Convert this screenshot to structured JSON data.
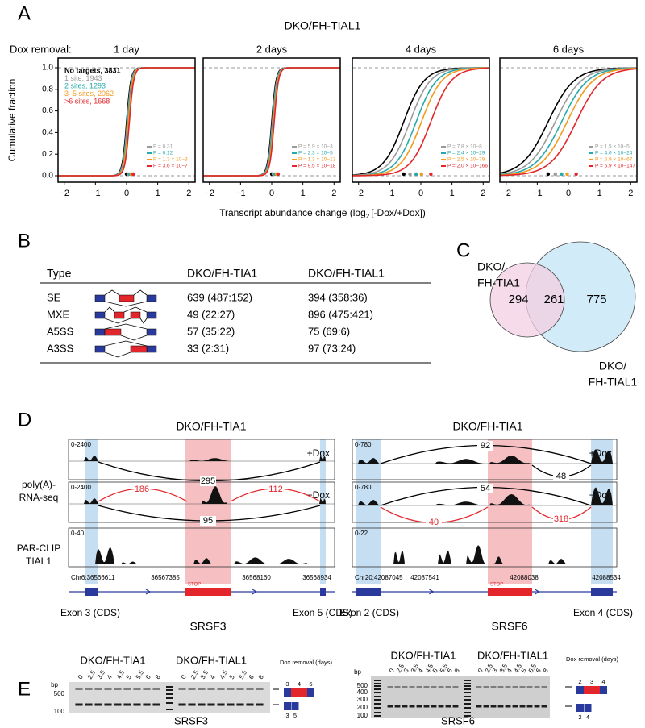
{
  "panel_a": {
    "label": "A",
    "title": "DKO/FH-TIAL1",
    "dox_label": "Dox removal:",
    "y_label": "Cumulative fraction",
    "x_label": [
      "Transcript abundance change (log",
      "2",
      "[-Dox/+Dox])"
    ],
    "y_ticks": [
      "0.0",
      "0.2",
      "0.4",
      "0.6",
      "0.8",
      "1.0"
    ],
    "x_ticks": [
      "−2",
      "−1",
      "0",
      "1",
      "2"
    ],
    "legend": [
      "No targets, 3831",
      "1 site, 1943",
      "2 sites, 1293",
      "3–5 sites, 2062",
      ">6 sites, 1668"
    ],
    "plots": [
      {
        "title": "1 day",
        "p_values": [
          "P = 0.31",
          "P = 0.12",
          "P = 1.3 × 10−3",
          "P = 3.6 × 10−7"
        ]
      },
      {
        "title": "2 days",
        "p_values": [
          "P = 5.9 × 10−3",
          "P = 2.3 × 10−5",
          "P = 1.3 × 10−13",
          "P = 9.5 × 10−18"
        ]
      },
      {
        "title": "4 days",
        "p_values": [
          "P = 7.8 × 10−8",
          "P = 2.4 × 10−29",
          "P = 2.5 × 10−79",
          "P = 2.0 × 10−166"
        ]
      },
      {
        "title": "6 days",
        "p_values": [
          "P = 1.5 × 10−5",
          "P = 4.0 × 10−24",
          "P = 5.9 × 10−67",
          "P = 5.9 × 10−147"
        ]
      }
    ]
  },
  "panel_b": {
    "label": "B",
    "header": [
      "Type",
      "DKO/FH-TIA1",
      "DKO/FH-TIAL1"
    ],
    "rows": [
      [
        "SE",
        "639 (487:152)",
        "394 (358:36)"
      ],
      [
        "MXE",
        "49 (22:27)",
        "896 (475:421)"
      ],
      [
        "A5SS",
        "57 (35:22)",
        "75 (69:6)"
      ],
      [
        "A3SS",
        "33 (2:31)",
        "97 (73:24)"
      ]
    ]
  },
  "panel_c": {
    "label": "C",
    "left_label": [
      "DKO/",
      "FH-TIA1"
    ],
    "right_label": [
      "DKO/",
      "FH-TIAL1"
    ],
    "counts": [
      "294",
      "261",
      "775"
    ]
  },
  "panel_d": {
    "label": "D",
    "track_labels": [
      [
        "poly(A)-",
        "RNA-seq"
      ],
      [
        "PAR-CLIP",
        "TIAL1"
      ]
    ],
    "genes": [
      {
        "title": "DKO/FH-TIA1",
        "scales": [
          "0-2400",
          "0-2400",
          "0-40"
        ],
        "plus": "+Dox",
        "minus": "−Dox",
        "junctions_plus": [
          "295"
        ],
        "junctions_minus": [
          "186",
          "112",
          "95"
        ],
        "coords": [
          "Chr6:36566611",
          "36567385",
          "36568160",
          "36568934"
        ],
        "stop": "STOP",
        "exons": [
          "Exon 3 (CDS)",
          "Exon 5 (CDS)"
        ],
        "gene": "SRSF3"
      },
      {
        "title": "DKO/FH-TIA1",
        "scales": [
          "0-780",
          "0-780",
          "0-22"
        ],
        "plus": "+Dox",
        "minus": "−Dox",
        "junctions_plus": [
          "92",
          "48"
        ],
        "junctions_minus": [
          "54",
          "40",
          "318"
        ],
        "coords": [
          "Chr20:42087045",
          "42087541",
          "42088038",
          "42088534"
        ],
        "stop": "STOP",
        "exons": [
          "Exon 2 (CDS)",
          "Exon 4 (CDS)"
        ],
        "gene": "SRSF6"
      }
    ]
  },
  "panel_e": {
    "label": "E",
    "gels": [
      {
        "groups": [
          "DKO/FH-TIA1",
          "DKO/FH-TIAL1"
        ],
        "bp": "bp",
        "sizes": [
          "500",
          "100"
        ],
        "lanes": [
          "0",
          "2.5",
          "3.5",
          "4",
          "4.5",
          "5",
          "5.5",
          "6",
          "8"
        ],
        "dox": "Dox removal (days)",
        "long_exons": [
          "3",
          "4",
          "5"
        ],
        "short_exons": [
          "3",
          "5"
        ],
        "gene": "SRSF3"
      },
      {
        "groups": [
          "DKO/FH-TIA1",
          "DKO/FH-TIAL1"
        ],
        "bp": "bp",
        "sizes": [
          "500",
          "400",
          "300",
          "200",
          "100"
        ],
        "lanes": [
          "0",
          "2.5",
          "3",
          "3.5",
          "4",
          "4.5",
          "5",
          "5.5",
          "6",
          "8"
        ],
        "dox": "Dox removal (days)",
        "long_exons": [
          "2",
          "3",
          "4"
        ],
        "short_exons": [
          "2",
          "4"
        ],
        "gene": "SRSF6"
      }
    ]
  }
}
